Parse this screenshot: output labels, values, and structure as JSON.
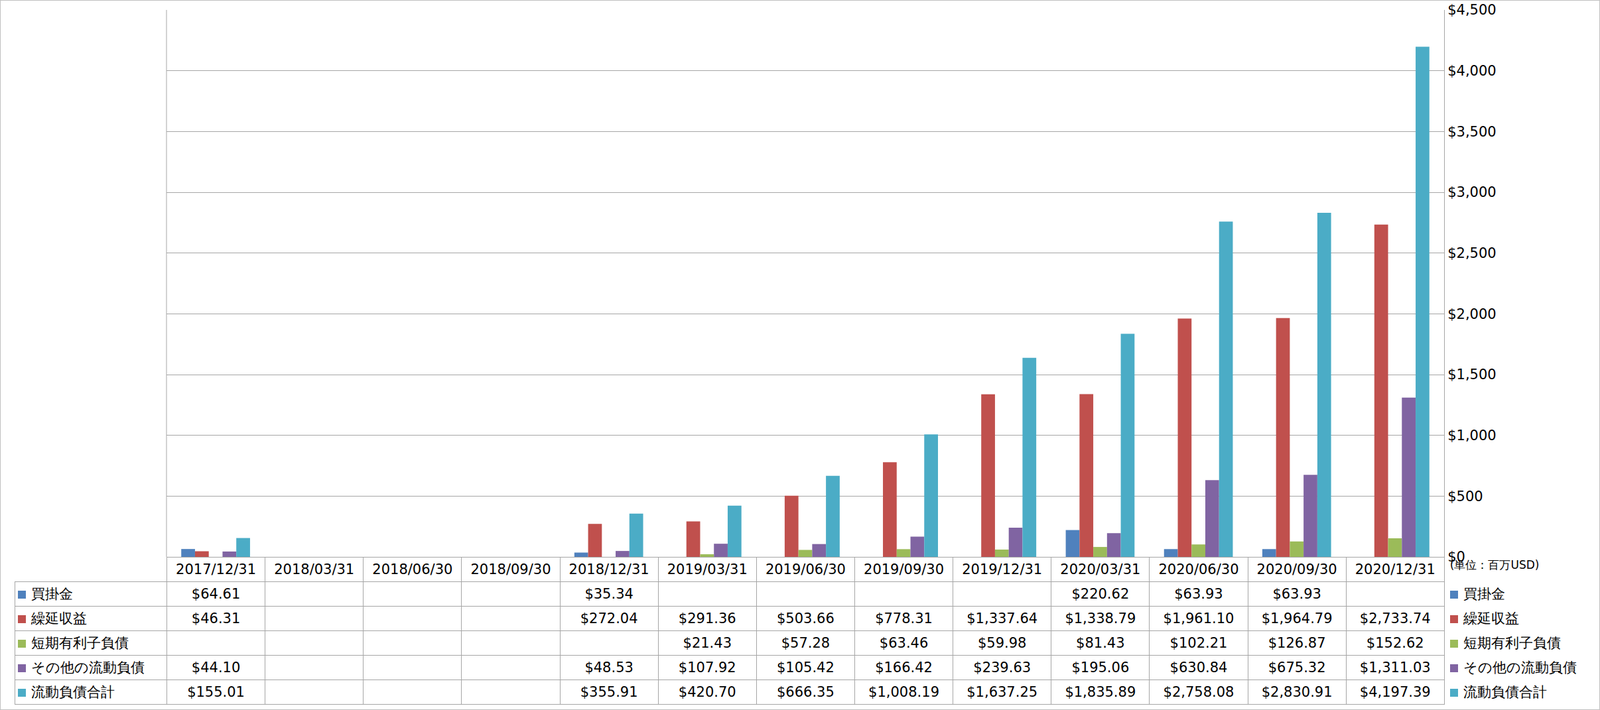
{
  "chart_data": {
    "type": "bar",
    "annotation": "(単位：百万USD)",
    "categories": [
      "2017/12/31",
      "2018/03/31",
      "2018/06/30",
      "2018/09/30",
      "2018/12/31",
      "2019/03/31",
      "2019/06/30",
      "2019/09/30",
      "2019/12/31",
      "2020/03/31",
      "2020/06/30",
      "2020/09/30",
      "2020/12/31"
    ],
    "series": [
      {
        "name": "買掛金",
        "color": "#4f81bd",
        "values": [
          64.61,
          null,
          null,
          null,
          35.34,
          null,
          null,
          null,
          null,
          220.62,
          63.93,
          63.93,
          null
        ],
        "value_labels": [
          "$64.61",
          null,
          null,
          null,
          "$35.34",
          null,
          null,
          null,
          null,
          "$220.62",
          "$63.93",
          "$63.93",
          null
        ]
      },
      {
        "name": "繰延収益",
        "color": "#c0504d",
        "values": [
          46.31,
          null,
          null,
          null,
          272.04,
          291.36,
          503.66,
          778.31,
          1337.64,
          1338.79,
          1961.1,
          1964.79,
          2733.74
        ],
        "value_labels": [
          "$46.31",
          null,
          null,
          null,
          "$272.04",
          "$291.36",
          "$503.66",
          "$778.31",
          "$1,337.64",
          "$1,338.79",
          "$1,961.10",
          "$1,964.79",
          "$2,733.74"
        ]
      },
      {
        "name": "短期有利子負債",
        "color": "#9bbb59",
        "values": [
          null,
          null,
          null,
          null,
          null,
          21.43,
          57.28,
          63.46,
          59.98,
          81.43,
          102.21,
          126.87,
          152.62
        ],
        "value_labels": [
          null,
          null,
          null,
          null,
          null,
          "$21.43",
          "$57.28",
          "$63.46",
          "$59.98",
          "$81.43",
          "$102.21",
          "$126.87",
          "$152.62"
        ]
      },
      {
        "name": "その他の流動負債",
        "color": "#8064a2",
        "values": [
          44.1,
          null,
          null,
          null,
          48.53,
          107.92,
          105.42,
          166.42,
          239.63,
          195.06,
          630.84,
          675.32,
          1311.03
        ],
        "value_labels": [
          "$44.10",
          null,
          null,
          null,
          "$48.53",
          "$107.92",
          "$105.42",
          "$166.42",
          "$239.63",
          "$195.06",
          "$630.84",
          "$675.32",
          "$1,311.03"
        ]
      },
      {
        "name": "流動負債合計",
        "color": "#4bacc6",
        "values": [
          155.01,
          null,
          null,
          null,
          355.91,
          420.7,
          666.35,
          1008.19,
          1637.25,
          1835.89,
          2758.08,
          2830.91,
          4197.39
        ],
        "value_labels": [
          "$155.01",
          null,
          null,
          null,
          "$355.91",
          "$420.70",
          "$666.35",
          "$1,008.19",
          "$1,637.25",
          "$1,835.89",
          "$2,758.08",
          "$2,830.91",
          "$4,197.39"
        ]
      }
    ],
    "ylim": [
      0,
      4500
    ],
    "yticks": [
      {
        "value": 0,
        "label": "$0"
      },
      {
        "value": 500,
        "label": "$500"
      },
      {
        "value": 1000,
        "label": "$1,000"
      },
      {
        "value": 1500,
        "label": "$1,500"
      },
      {
        "value": 2000,
        "label": "$2,000"
      },
      {
        "value": 2500,
        "label": "$2,500"
      },
      {
        "value": 3000,
        "label": "$3,000"
      },
      {
        "value": 3500,
        "label": "$3,500"
      },
      {
        "value": 4000,
        "label": "$4,000"
      },
      {
        "value": 4500,
        "label": "$4,500"
      }
    ],
    "grid": true,
    "legend": "right"
  }
}
